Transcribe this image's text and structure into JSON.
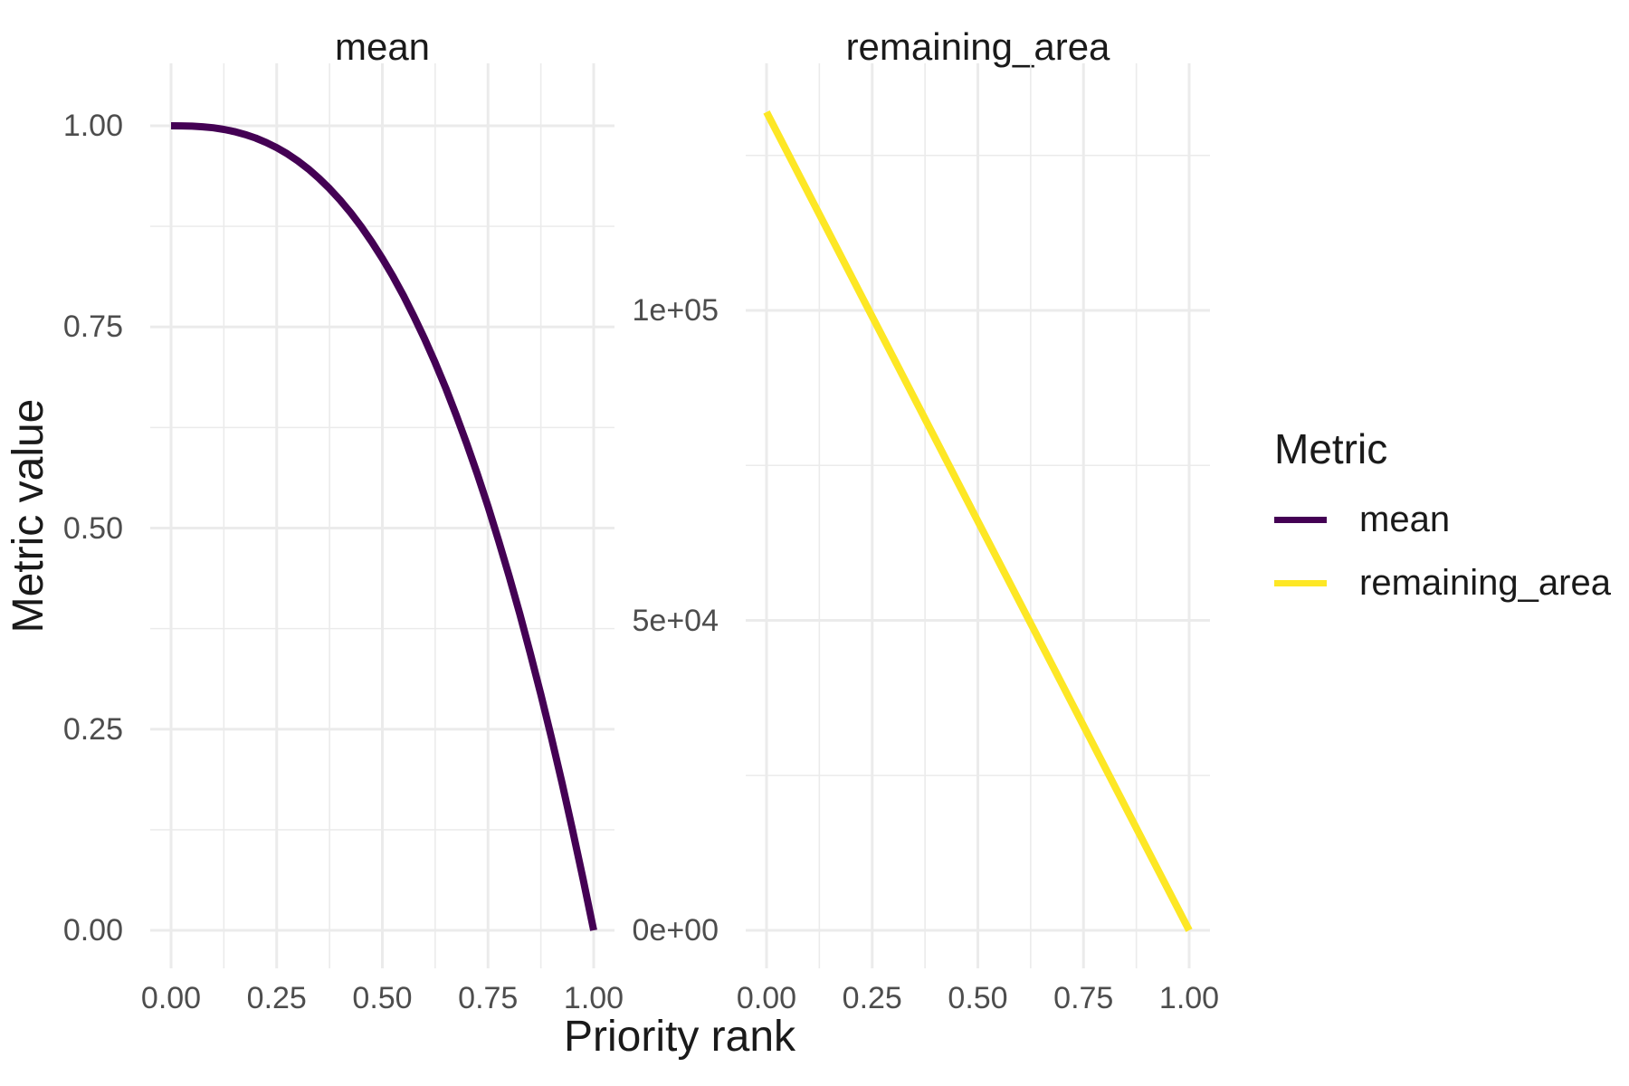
{
  "figure": {
    "background": "#FFFFFF",
    "x_axis_title": "Priority rank",
    "y_axis_title": "Metric value",
    "grid_major_color": "#EBEBEB",
    "grid_minor_color": "#EBEBEB",
    "tick_label_color": "#4D4D4D",
    "text_color": "#1A1A1A",
    "legend": {
      "title": "Metric",
      "position": "right",
      "items": [
        {
          "label": "mean",
          "color": "#440154"
        },
        {
          "label": "remaining_area",
          "color": "#FDE725"
        }
      ]
    }
  },
  "chart_data": [
    {
      "type": "line",
      "facet": "mean",
      "series_name": "mean",
      "color": "#440154",
      "line_width": 8,
      "xlim": [
        0,
        1
      ],
      "ylim": [
        0,
        1
      ],
      "x_ticks": [
        0,
        0.25,
        0.5,
        0.75,
        1
      ],
      "x_tick_labels": [
        "0.00",
        "0.25",
        "0.50",
        "0.75",
        "1.00"
      ],
      "x_minor": [
        0.125,
        0.375,
        0.625,
        0.875
      ],
      "y_ticks": [
        0,
        0.25,
        0.5,
        0.75,
        1
      ],
      "y_tick_labels": [
        "0.00",
        "0.25",
        "0.50",
        "0.75",
        "1.00"
      ],
      "y_minor": [
        0.125,
        0.375,
        0.625,
        0.875
      ],
      "x": [
        0,
        0.025,
        0.05,
        0.075,
        0.1,
        0.125,
        0.15,
        0.175,
        0.2,
        0.225,
        0.25,
        0.275,
        0.3,
        0.325,
        0.35,
        0.375,
        0.4,
        0.425,
        0.45,
        0.475,
        0.5,
        0.525,
        0.55,
        0.575,
        0.6,
        0.625,
        0.65,
        0.675,
        0.7,
        0.725,
        0.75,
        0.775,
        0.8,
        0.825,
        0.85,
        0.875,
        0.9,
        0.925,
        0.95,
        0.975,
        1.0
      ],
      "y": [
        1.0,
        0.9999,
        0.9996,
        0.9988,
        0.9975,
        0.9955,
        0.9928,
        0.9892,
        0.9848,
        0.9793,
        0.9728,
        0.9652,
        0.9563,
        0.9462,
        0.9348,
        0.9219,
        0.9077,
        0.8919,
        0.8746,
        0.8557,
        0.8351,
        0.8128,
        0.7887,
        0.7628,
        0.7351,
        0.7054,
        0.6738,
        0.6401,
        0.6044,
        0.5666,
        0.5267,
        0.4845,
        0.4402,
        0.3936,
        0.3446,
        0.2933,
        0.2395,
        0.1835,
        0.1249,
        0.0637,
        0.0
      ]
    },
    {
      "type": "line",
      "facet": "remaining_area",
      "series_name": "remaining_area",
      "color": "#FDE725",
      "line_width": 8,
      "xlim": [
        0,
        1
      ],
      "ylim": [
        0,
        132000
      ],
      "x_ticks": [
        0,
        0.25,
        0.5,
        0.75,
        1
      ],
      "x_tick_labels": [
        "0.00",
        "0.25",
        "0.50",
        "0.75",
        "1.00"
      ],
      "x_minor": [
        0.125,
        0.375,
        0.625,
        0.875
      ],
      "y_ticks": [
        0,
        50000,
        100000
      ],
      "y_tick_labels": [
        "0e+00",
        "5e+04",
        "1e+05"
      ],
      "y_minor": [
        25000,
        75000,
        125000
      ],
      "x": [
        0,
        0.25,
        0.5,
        0.75,
        1.0
      ],
      "y": [
        132000,
        99000,
        66000,
        33000,
        0
      ]
    }
  ]
}
